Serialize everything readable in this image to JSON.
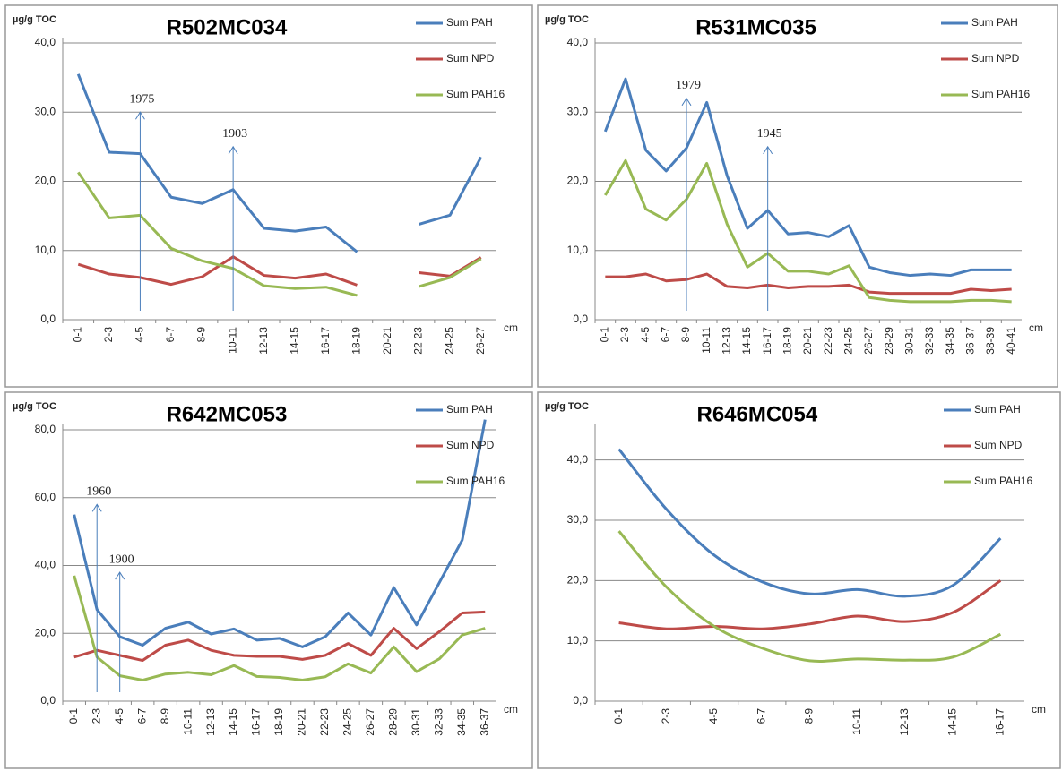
{
  "chart_data": [
    {
      "type": "line",
      "title": "R502MC034",
      "y_label": "µg/g TOC",
      "x_label": "cm",
      "categories": [
        "0-1",
        "2-3",
        "4-5",
        "6-7",
        "8-9",
        "10-11",
        "12-13",
        "14-15",
        "16-17",
        "18-19",
        "20-21",
        "22-23",
        "24-25",
        "26-27"
      ],
      "series": [
        {
          "name": "Sum PAH",
          "color": "#4a7ebb",
          "values": [
            35.5,
            24.2,
            24.0,
            17.7,
            16.8,
            18.8,
            13.2,
            12.8,
            13.4,
            9.8,
            null,
            13.8,
            15.1,
            23.5
          ]
        },
        {
          "name": "Sum NPD",
          "color": "#be4b48",
          "values": [
            8.0,
            6.6,
            6.1,
            5.1,
            6.2,
            9.1,
            6.4,
            6.0,
            6.6,
            5.0,
            null,
            6.8,
            6.3,
            9.0
          ]
        },
        {
          "name": "Sum PAH16",
          "color": "#98b954",
          "values": [
            21.3,
            14.7,
            15.1,
            10.3,
            8.5,
            7.4,
            4.9,
            4.5,
            4.7,
            3.5,
            null,
            4.8,
            6.1,
            8.8
          ]
        }
      ],
      "ylim": [
        0,
        40
      ],
      "yticks": [
        {
          "value": 0,
          "label": "0,0"
        },
        {
          "value": 10,
          "label": "10,0"
        },
        {
          "value": 20,
          "label": "20,0"
        },
        {
          "value": 30,
          "label": "30,0"
        },
        {
          "value": 40,
          "label": "40,0"
        }
      ],
      "grid": true,
      "legend": "upper right",
      "smooth": false,
      "annotations": [
        {
          "text": "1975",
          "at": 2,
          "y": 30
        },
        {
          "text": "1903",
          "at": 5,
          "y": 25
        }
      ]
    },
    {
      "type": "line",
      "title": "R531MC035",
      "y_label": "µg/g TOC",
      "x_label": "cm",
      "categories": [
        "0-1",
        "2-3",
        "4-5",
        "6-7",
        "8-9",
        "10-11",
        "12-13",
        "14-15",
        "16-17",
        "18-19",
        "20-21",
        "22-23",
        "24-25",
        "26-27",
        "28-29",
        "30-31",
        "32-33",
        "34-35",
        "36-37",
        "38-39",
        "40-41"
      ],
      "series": [
        {
          "name": "Sum PAH",
          "color": "#4a7ebb",
          "values": [
            27.2,
            34.8,
            24.5,
            21.5,
            24.8,
            31.4,
            20.8,
            13.2,
            15.8,
            12.4,
            12.6,
            12.0,
            13.6,
            7.6,
            6.8,
            6.4,
            6.6,
            6.4,
            7.2,
            7.2,
            7.2
          ]
        },
        {
          "name": "Sum NPD",
          "color": "#be4b48",
          "values": [
            6.2,
            6.2,
            6.6,
            5.6,
            5.8,
            6.6,
            4.8,
            4.6,
            5.0,
            4.6,
            4.8,
            4.8,
            5.0,
            4.0,
            3.8,
            3.8,
            3.8,
            3.8,
            4.4,
            4.2,
            4.4
          ]
        },
        {
          "name": "Sum PAH16",
          "color": "#98b954",
          "values": [
            18.0,
            23.0,
            16.0,
            14.4,
            17.4,
            22.6,
            13.8,
            7.6,
            9.6,
            7.0,
            7.0,
            6.6,
            7.8,
            3.2,
            2.8,
            2.6,
            2.6,
            2.6,
            2.8,
            2.8,
            2.6
          ]
        }
      ],
      "ylim": [
        0,
        40
      ],
      "yticks": [
        {
          "value": 0,
          "label": "0,0"
        },
        {
          "value": 10,
          "label": "10,0"
        },
        {
          "value": 20,
          "label": "20,0"
        },
        {
          "value": 30,
          "label": "30,0"
        },
        {
          "value": 40,
          "label": "40,0"
        }
      ],
      "grid": true,
      "legend": "upper right",
      "smooth": false,
      "annotations": [
        {
          "text": "1979",
          "at": 4,
          "y": 32
        },
        {
          "text": "1945",
          "at": 8,
          "y": 25
        }
      ]
    },
    {
      "type": "line",
      "title": "R642MC053",
      "y_label": "µg/g TOC",
      "x_label": "cm",
      "categories": [
        "0-1",
        "2-3",
        "4-5",
        "6-7",
        "8-9",
        "10-11",
        "12-13",
        "14-15",
        "16-17",
        "18-19",
        "20-21",
        "22-23",
        "24-25",
        "26-27",
        "28-29",
        "30-31",
        "32-33",
        "34-35",
        "36-37"
      ],
      "series": [
        {
          "name": "Sum PAH",
          "color": "#4a7ebb",
          "values": [
            55,
            27,
            19,
            16.5,
            21.5,
            23.3,
            19.8,
            21.3,
            18,
            18.5,
            16,
            19,
            26,
            19.5,
            33.5,
            22.5,
            35,
            47.5,
            83
          ]
        },
        {
          "name": "Sum NPD",
          "color": "#be4b48",
          "values": [
            13,
            15,
            13.5,
            12,
            16.5,
            18,
            15,
            13.5,
            13.2,
            13.2,
            12.3,
            13.5,
            17,
            13.5,
            21.5,
            15.5,
            20.5,
            26,
            26.3
          ]
        },
        {
          "name": "Sum PAH16",
          "color": "#98b954",
          "values": [
            37,
            13,
            7.5,
            6.2,
            8,
            8.5,
            7.8,
            10.5,
            7.3,
            7,
            6.2,
            7.2,
            11,
            8.3,
            16,
            8.7,
            12.5,
            19.5,
            21.5
          ]
        }
      ],
      "ylim": [
        0,
        80
      ],
      "yticks": [
        {
          "value": 0,
          "label": "0,0"
        },
        {
          "value": 20,
          "label": "20,0"
        },
        {
          "value": 40,
          "label": "40,0"
        },
        {
          "value": 60,
          "label": "60,0"
        },
        {
          "value": 80,
          "label": "80,0"
        }
      ],
      "grid": true,
      "legend": "upper right",
      "smooth": false,
      "annotations": [
        {
          "text": "1960",
          "at": 1,
          "y": 58
        },
        {
          "text": "1900",
          "at": 2,
          "y": 38
        }
      ]
    },
    {
      "type": "line",
      "title": "R646MC054",
      "y_label": "µg/g TOC",
      "x_label": "cm",
      "categories": [
        "0-1",
        "2-3",
        "4-5",
        "6-7",
        "8-9",
        "10-11",
        "12-13",
        "14-15",
        "16-17"
      ],
      "series": [
        {
          "name": "Sum PAH",
          "color": "#4a7ebb",
          "values": [
            41.8,
            31.8,
            24.2,
            19.8,
            17.8,
            18.5,
            17.4,
            19.2,
            27.0
          ]
        },
        {
          "name": "Sum NPD",
          "color": "#be4b48",
          "values": [
            13.0,
            12.0,
            12.4,
            12.0,
            12.8,
            14.1,
            13.2,
            14.7,
            20.0
          ]
        },
        {
          "name": "Sum PAH16",
          "color": "#98b954",
          "values": [
            28.2,
            18.9,
            12.4,
            8.8,
            6.7,
            7.0,
            6.8,
            7.3,
            11.1
          ]
        }
      ],
      "ylim": [
        0,
        45
      ],
      "yticks": [
        {
          "value": 0,
          "label": "0,0"
        },
        {
          "value": 10,
          "label": "10,0"
        },
        {
          "value": 20,
          "label": "20,0"
        },
        {
          "value": 30,
          "label": "30,0"
        },
        {
          "value": 40,
          "label": "40,0"
        }
      ],
      "grid": true,
      "legend": "upper right",
      "smooth": true,
      "annotations": []
    }
  ]
}
